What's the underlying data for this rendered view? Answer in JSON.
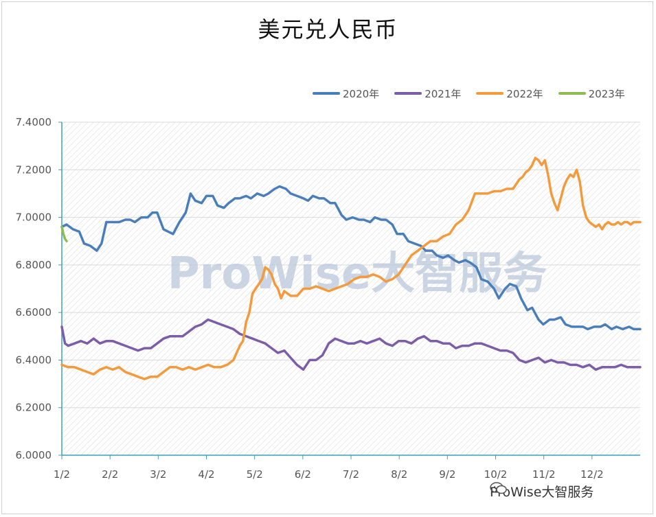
{
  "chart_data": {
    "type": "line",
    "title": "美元兑人民币",
    "xlabel": "",
    "ylabel": "",
    "ylim": [
      6.0,
      7.4
    ],
    "yticks": [
      "6.0000",
      "6.2000",
      "6.4000",
      "6.6000",
      "6.8000",
      "7.0000",
      "7.2000",
      "7.4000"
    ],
    "xticks": [
      "1/2",
      "2/2",
      "3/2",
      "4/2",
      "5/2",
      "6/2",
      "7/2",
      "8/2",
      "9/2",
      "10/2",
      "11/2",
      "12/2"
    ],
    "x_domain_days": [
      0,
      364
    ],
    "grid": true,
    "legend_position": "top-right",
    "series": [
      {
        "name": "2020年",
        "color": "#4a7ebb",
        "x": [
          0,
          3,
          7,
          11,
          14,
          18,
          22,
          25,
          28,
          31,
          36,
          40,
          43,
          46,
          50,
          54,
          57,
          60,
          64,
          67,
          70,
          74,
          78,
          81,
          84,
          88,
          91,
          95,
          98,
          102,
          105,
          109,
          112,
          116,
          119,
          123,
          127,
          130,
          134,
          137,
          141,
          144,
          148,
          152,
          155,
          158,
          162,
          165,
          169,
          172,
          176,
          179,
          183,
          187,
          190,
          194,
          197,
          201,
          204,
          208,
          211,
          215,
          218,
          222,
          226,
          229,
          233,
          236,
          240,
          243,
          247,
          250,
          254,
          257,
          261,
          264,
          268,
          272,
          275,
          279,
          282,
          286,
          289,
          293,
          296,
          300,
          303,
          307,
          310,
          314,
          317,
          321,
          324,
          328,
          331,
          335,
          339,
          342,
          346,
          349,
          353,
          357,
          360,
          364
        ],
        "values": [
          6.96,
          6.97,
          6.95,
          6.94,
          6.89,
          6.88,
          6.86,
          6.89,
          6.98,
          6.98,
          6.98,
          6.99,
          6.99,
          6.98,
          7.0,
          7.0,
          7.02,
          7.02,
          6.95,
          6.94,
          6.93,
          6.98,
          7.02,
          7.1,
          7.07,
          7.06,
          7.09,
          7.09,
          7.05,
          7.04,
          7.06,
          7.08,
          7.08,
          7.09,
          7.08,
          7.1,
          7.09,
          7.1,
          7.12,
          7.13,
          7.12,
          7.1,
          7.09,
          7.08,
          7.07,
          7.09,
          7.08,
          7.08,
          7.06,
          7.06,
          7.01,
          6.99,
          7.0,
          6.99,
          6.99,
          6.98,
          7.0,
          6.99,
          6.99,
          6.97,
          6.93,
          6.93,
          6.9,
          6.89,
          6.88,
          6.86,
          6.86,
          6.84,
          6.83,
          6.84,
          6.82,
          6.81,
          6.82,
          6.81,
          6.79,
          6.74,
          6.73,
          6.7,
          6.66,
          6.7,
          6.72,
          6.71,
          6.66,
          6.61,
          6.62,
          6.57,
          6.55,
          6.57,
          6.57,
          6.58,
          6.55,
          6.54,
          6.54,
          6.54,
          6.53,
          6.54,
          6.54,
          6.55,
          6.53,
          6.54,
          6.53,
          6.54,
          6.53,
          6.53
        ]
      },
      {
        "name": "2021年",
        "color": "#7b5ea7",
        "x": [
          0,
          2,
          4,
          8,
          12,
          16,
          20,
          24,
          28,
          32,
          36,
          40,
          44,
          48,
          52,
          56,
          60,
          64,
          68,
          72,
          76,
          80,
          84,
          88,
          92,
          96,
          100,
          104,
          108,
          112,
          116,
          120,
          124,
          128,
          132,
          136,
          140,
          144,
          148,
          152,
          156,
          160,
          164,
          168,
          172,
          176,
          180,
          184,
          188,
          192,
          196,
          200,
          204,
          208,
          212,
          216,
          220,
          224,
          228,
          232,
          236,
          240,
          244,
          248,
          252,
          256,
          260,
          264,
          268,
          272,
          276,
          280,
          284,
          288,
          292,
          296,
          300,
          304,
          308,
          312,
          316,
          320,
          324,
          328,
          332,
          336,
          340,
          344,
          348,
          352,
          356,
          360,
          364
        ],
        "values": [
          6.54,
          6.47,
          6.46,
          6.47,
          6.48,
          6.47,
          6.49,
          6.47,
          6.48,
          6.48,
          6.47,
          6.46,
          6.45,
          6.44,
          6.45,
          6.45,
          6.47,
          6.49,
          6.5,
          6.5,
          6.5,
          6.52,
          6.54,
          6.55,
          6.57,
          6.56,
          6.55,
          6.54,
          6.53,
          6.51,
          6.5,
          6.49,
          6.48,
          6.47,
          6.45,
          6.43,
          6.44,
          6.41,
          6.38,
          6.36,
          6.4,
          6.4,
          6.42,
          6.47,
          6.49,
          6.48,
          6.47,
          6.47,
          6.48,
          6.47,
          6.48,
          6.49,
          6.47,
          6.46,
          6.48,
          6.48,
          6.47,
          6.49,
          6.5,
          6.48,
          6.48,
          6.47,
          6.47,
          6.45,
          6.46,
          6.46,
          6.47,
          6.47,
          6.46,
          6.45,
          6.44,
          6.44,
          6.43,
          6.4,
          6.39,
          6.4,
          6.41,
          6.39,
          6.4,
          6.39,
          6.39,
          6.38,
          6.38,
          6.37,
          6.38,
          6.36,
          6.37,
          6.37,
          6.37,
          6.38,
          6.37,
          6.37,
          6.37
        ]
      },
      {
        "name": "2022年",
        "color": "#f39a3d",
        "x": [
          0,
          4,
          8,
          12,
          16,
          20,
          24,
          28,
          32,
          36,
          40,
          44,
          48,
          52,
          56,
          60,
          64,
          68,
          72,
          76,
          80,
          84,
          88,
          92,
          96,
          100,
          104,
          108,
          112,
          114,
          116,
          118,
          120,
          122,
          124,
          126,
          128,
          130,
          132,
          134,
          136,
          138,
          140,
          144,
          148,
          152,
          156,
          160,
          164,
          168,
          172,
          176,
          180,
          184,
          188,
          192,
          196,
          200,
          204,
          208,
          212,
          216,
          220,
          224,
          228,
          232,
          236,
          240,
          244,
          248,
          252,
          256,
          260,
          264,
          268,
          272,
          276,
          280,
          284,
          288,
          290,
          292,
          294,
          296,
          298,
          300,
          302,
          304,
          306,
          308,
          310,
          312,
          314,
          316,
          318,
          320,
          322,
          324,
          326,
          328,
          330,
          332,
          334,
          336,
          338,
          340,
          342,
          344,
          346,
          348,
          350,
          352,
          354,
          356,
          358,
          360,
          362,
          364
        ],
        "values": [
          6.38,
          6.37,
          6.37,
          6.36,
          6.35,
          6.34,
          6.36,
          6.37,
          6.36,
          6.37,
          6.35,
          6.34,
          6.33,
          6.32,
          6.33,
          6.33,
          6.35,
          6.37,
          6.37,
          6.36,
          6.37,
          6.36,
          6.37,
          6.38,
          6.37,
          6.37,
          6.38,
          6.4,
          6.46,
          6.48,
          6.56,
          6.6,
          6.68,
          6.7,
          6.72,
          6.74,
          6.79,
          6.78,
          6.76,
          6.72,
          6.7,
          6.66,
          6.69,
          6.67,
          6.67,
          6.7,
          6.7,
          6.71,
          6.7,
          6.69,
          6.7,
          6.71,
          6.72,
          6.74,
          6.75,
          6.75,
          6.76,
          6.75,
          6.73,
          6.74,
          6.76,
          6.8,
          6.84,
          6.86,
          6.88,
          6.9,
          6.9,
          6.92,
          6.93,
          6.97,
          6.99,
          7.03,
          7.1,
          7.1,
          7.1,
          7.11,
          7.11,
          7.12,
          7.12,
          7.16,
          7.17,
          7.19,
          7.2,
          7.22,
          7.25,
          7.24,
          7.22,
          7.24,
          7.18,
          7.1,
          7.06,
          7.03,
          7.08,
          7.13,
          7.16,
          7.18,
          7.17,
          7.2,
          7.15,
          7.05,
          7.0,
          6.98,
          6.97,
          6.96,
          6.97,
          6.95,
          6.97,
          6.98,
          6.97,
          6.97,
          6.98,
          6.97,
          6.98,
          6.98,
          6.97,
          6.98,
          6.98,
          6.98
        ]
      },
      {
        "name": "2023年",
        "color": "#8cbd4e",
        "x": [
          0,
          1,
          2,
          3
        ],
        "values": [
          6.96,
          6.93,
          6.91,
          6.9
        ]
      }
    ]
  },
  "watermark": {
    "text": "ProWise大智服务",
    "color": "#b9c7da"
  },
  "footer": {
    "text": "ProWise大智服务",
    "icon": "wechat-icon"
  }
}
